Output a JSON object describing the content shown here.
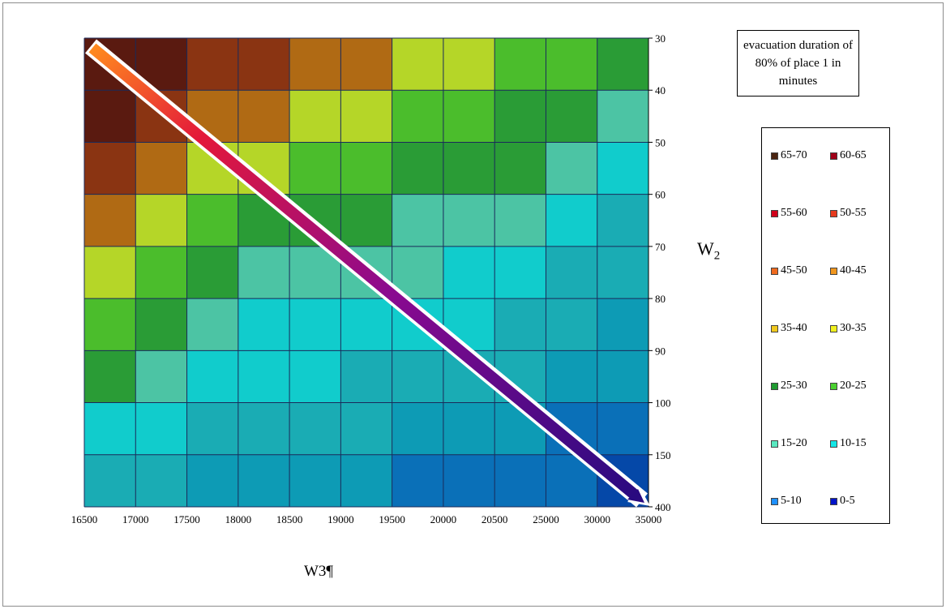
{
  "chart_data": {
    "type": "contour",
    "title": "evacuation duration of 80% of place 1  in minutes",
    "xlabel": "W3¶",
    "ylabel": "W2",
    "x_ticks": [
      "16500",
      "17000",
      "17500",
      "18000",
      "18500",
      "19000",
      "19500",
      "20000",
      "20500",
      "25000",
      "30000",
      "35000"
    ],
    "y_ticks": [
      "30",
      "40",
      "50",
      "60",
      "70",
      "80",
      "90",
      "100",
      "150",
      "400"
    ],
    "legend_position": "right",
    "grid": true,
    "legend": [
      {
        "label": "65-70",
        "color": "#4a2410"
      },
      {
        "label": "60-65",
        "color": "#a00018"
      },
      {
        "label": "55-60",
        "color": "#d0001a"
      },
      {
        "label": "50-55",
        "color": "#e63a1e"
      },
      {
        "label": "45-50",
        "color": "#ef6a1e"
      },
      {
        "label": "40-45",
        "color": "#f0961e"
      },
      {
        "label": "35-40",
        "color": "#f0c81e"
      },
      {
        "label": "30-35",
        "color": "#f0f01e"
      },
      {
        "label": "25-30",
        "color": "#1e9a30"
      },
      {
        "label": "20-25",
        "color": "#4ad030"
      },
      {
        "label": "15-20",
        "color": "#5ae8c0"
      },
      {
        "label": "10-15",
        "color": "#14e6e6"
      },
      {
        "label": "5-10",
        "color": "#1e90ff"
      },
      {
        "label": "0-5",
        "color": "#0014c8"
      }
    ],
    "fills": [
      "#b5d628",
      "#4bbd2c",
      "#2a9c36",
      "#4cc4a4",
      "#11cccc",
      "#1aacb4",
      "#0d9bb5",
      "#0a70b8",
      "#0548a8"
    ],
    "z": [
      [
        70,
        67,
        63,
        58,
        53,
        48,
        43,
        40,
        37,
        34,
        33,
        31
      ],
      [
        66,
        62,
        57,
        51,
        45,
        40,
        37,
        35,
        33,
        30,
        27,
        24
      ],
      [
        60,
        55,
        48,
        43,
        38,
        34,
        32,
        31,
        29,
        25,
        22,
        18
      ],
      [
        51,
        44,
        38,
        32,
        29,
        28,
        27,
        26,
        25,
        21,
        18,
        14
      ],
      [
        44,
        37,
        32,
        27,
        25,
        24,
        23,
        22,
        21,
        17,
        14,
        12
      ],
      [
        37,
        31,
        26,
        22,
        20,
        19,
        18,
        17,
        16,
        13,
        11,
        9
      ],
      [
        31,
        26,
        22,
        19,
        18,
        17,
        15,
        14,
        13,
        11,
        9,
        7
      ],
      [
        25,
        20,
        17,
        15,
        14,
        13,
        12,
        11,
        10,
        8,
        7,
        6
      ],
      [
        19,
        15,
        13,
        11,
        10,
        9,
        8,
        7,
        7,
        6,
        5,
        5
      ],
      [
        10,
        9,
        8,
        7,
        6,
        6,
        5,
        5,
        4,
        3,
        2,
        1
      ]
    ]
  }
}
